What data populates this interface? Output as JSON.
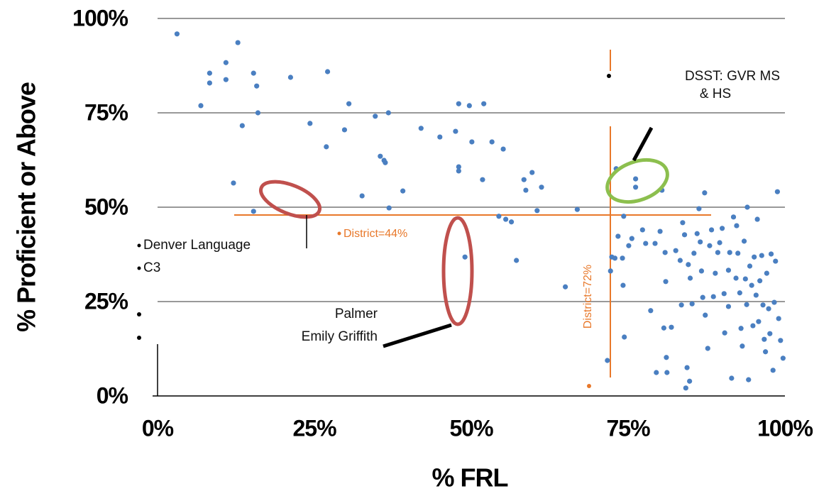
{
  "chart_data": {
    "type": "scatter",
    "x_label": "% FRL",
    "y_label": "% Proficient or Above",
    "xlim": [
      0,
      100
    ],
    "ylim": [
      0,
      100
    ],
    "xticks": [
      {
        "value": 0,
        "label": "0%"
      },
      {
        "value": 25,
        "label": "25%"
      },
      {
        "value": 50,
        "label": "50%"
      },
      {
        "value": 75,
        "label": "75%"
      },
      {
        "value": 100,
        "label": "100%"
      }
    ],
    "yticks": [
      {
        "value": 0,
        "label": "0%"
      },
      {
        "value": 25,
        "label": "25%"
      },
      {
        "value": 50,
        "label": "50%"
      },
      {
        "value": 75,
        "label": "75%"
      },
      {
        "value": 100,
        "label": "100%"
      }
    ],
    "grid": true,
    "color": "#4a7fc1",
    "x": [
      3.1,
      6.9,
      8.3,
      8.3,
      10.9,
      10.9,
      12.8,
      13.5,
      12.1,
      15.3,
      15.8,
      16.0,
      15.3,
      21.2,
      24.3,
      27.1,
      26.9,
      29.8,
      30.5,
      32.6,
      34.7,
      36.8,
      35.5,
      36.1,
      36.3,
      36.9,
      39.1,
      42.0,
      45.0,
      47.5,
      48.0,
      49.7,
      52.0,
      48.0,
      48.0,
      49.0,
      50.1,
      51.8,
      53.3,
      55.1,
      54.4,
      55.5,
      56.4,
      57.2,
      58.4,
      58.7,
      59.7,
      61.2,
      60.5,
      65.0,
      66.9,
      71.7,
      72.2,
      72.4,
      72.9,
      73.1,
      74.1,
      73.4,
      74.2,
      74.4,
      74.3,
      75.1,
      75.6,
      76.2,
      76.2,
      77.3,
      77.8,
      78.6,
      79.3,
      79.5,
      80.1,
      80.4,
      80.7,
      80.9,
      81.0,
      81.1,
      81.2,
      81.9,
      82.6,
      83.3,
      83.5,
      83.7,
      84.0,
      84.2,
      84.4,
      84.6,
      84.8,
      84.9,
      85.2,
      85.5,
      86.0,
      86.3,
      86.5,
      86.7,
      86.9,
      87.2,
      87.3,
      87.7,
      88.0,
      88.3,
      88.6,
      88.9,
      89.3,
      89.6,
      90.0,
      90.3,
      90.4,
      91.0,
      91.0,
      91.2,
      91.5,
      91.8,
      92.2,
      92.3,
      92.5,
      92.8,
      93.0,
      93.2,
      93.5,
      93.7,
      93.9,
      94.0,
      94.2,
      94.4,
      94.7,
      94.9,
      95.1,
      95.4,
      95.6,
      95.8,
      96.0,
      96.3,
      96.5,
      96.7,
      96.9,
      97.1,
      97.4,
      97.6,
      97.8,
      98.1,
      98.3,
      98.5,
      98.8,
      99.0,
      99.3,
      99.7
    ],
    "values": [
      95.9,
      76.9,
      85.5,
      82.9,
      88.3,
      83.8,
      93.6,
      71.6,
      56.4,
      85.5,
      82.1,
      75.0,
      48.9,
      84.4,
      72.2,
      85.9,
      66.0,
      70.5,
      77.4,
      53.0,
      74.1,
      75.0,
      63.5,
      62.4,
      61.8,
      49.8,
      54.3,
      70.9,
      68.6,
      70.1,
      77.4,
      76.9,
      77.4,
      60.7,
      59.6,
      36.8,
      67.3,
      57.3,
      67.3,
      65.4,
      47.6,
      46.8,
      46.1,
      35.9,
      57.3,
      54.5,
      59.2,
      55.3,
      49.1,
      28.9,
      49.4,
      9.4,
      33.1,
      36.8,
      36.5,
      60.2,
      36.5,
      42.3,
      29.3,
      15.6,
      47.6,
      39.8,
      41.7,
      57.5,
      55.3,
      44.0,
      40.4,
      22.6,
      40.4,
      6.2,
      43.6,
      54.5,
      18.0,
      38.0,
      30.3,
      10.2,
      6.2,
      18.2,
      38.5,
      35.9,
      24.1,
      45.9,
      42.7,
      2.1,
      7.5,
      34.8,
      3.9,
      31.2,
      24.4,
      37.8,
      43.0,
      49.6,
      40.8,
      33.1,
      26.1,
      53.8,
      21.4,
      12.6,
      39.8,
      44.0,
      26.3,
      32.5,
      38.0,
      40.6,
      44.4,
      27.1,
      16.7,
      33.3,
      23.7,
      38.0,
      4.7,
      47.4,
      31.2,
      45.1,
      37.8,
      27.3,
      17.9,
      13.2,
      41.0,
      31.0,
      24.2,
      50.0,
      4.3,
      34.4,
      29.3,
      18.6,
      36.8,
      26.7,
      46.8,
      19.7,
      30.5,
      37.2,
      24.1,
      15.0,
      11.7,
      32.5,
      23.1,
      16.5,
      37.6,
      6.8,
      24.8,
      35.7,
      54.1,
      20.5,
      14.7,
      10.0
    ],
    "annotations": [
      "DSST: GVR MS",
      "& HS",
      "District=44%",
      "District=72%",
      "Denver Language",
      "C3",
      "Palmer",
      "Emily Griffith"
    ]
  }
}
